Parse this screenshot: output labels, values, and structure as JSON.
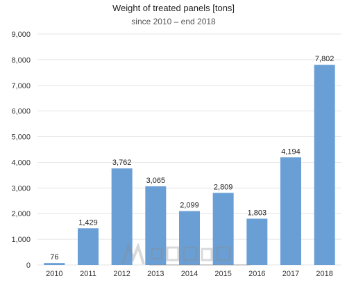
{
  "chart_data": {
    "type": "bar",
    "title": "Weight of treated panels [tons]",
    "subtitle": "since 2010 – end 2018",
    "categories": [
      "2010",
      "2011",
      "2012",
      "2013",
      "2014",
      "2015",
      "2016",
      "2017",
      "2018"
    ],
    "values": [
      76,
      1429,
      3762,
      3065,
      2099,
      2809,
      1803,
      4194,
      7802
    ],
    "data_labels": [
      "76",
      "1,429",
      "3,762",
      "3,065",
      "2,099",
      "2,809",
      "1,803",
      "4,194",
      "7,802"
    ],
    "ylim": [
      0,
      9000
    ],
    "yticks": [
      0,
      1000,
      2000,
      3000,
      4000,
      5000,
      6000,
      7000,
      8000,
      9000
    ],
    "ytick_labels": [
      "0",
      "1,000",
      "2,000",
      "3,000",
      "4,000",
      "5,000",
      "6,000",
      "7,000",
      "8,000",
      "9,000"
    ],
    "grid": true,
    "bar_color": "#6a9fd6"
  }
}
